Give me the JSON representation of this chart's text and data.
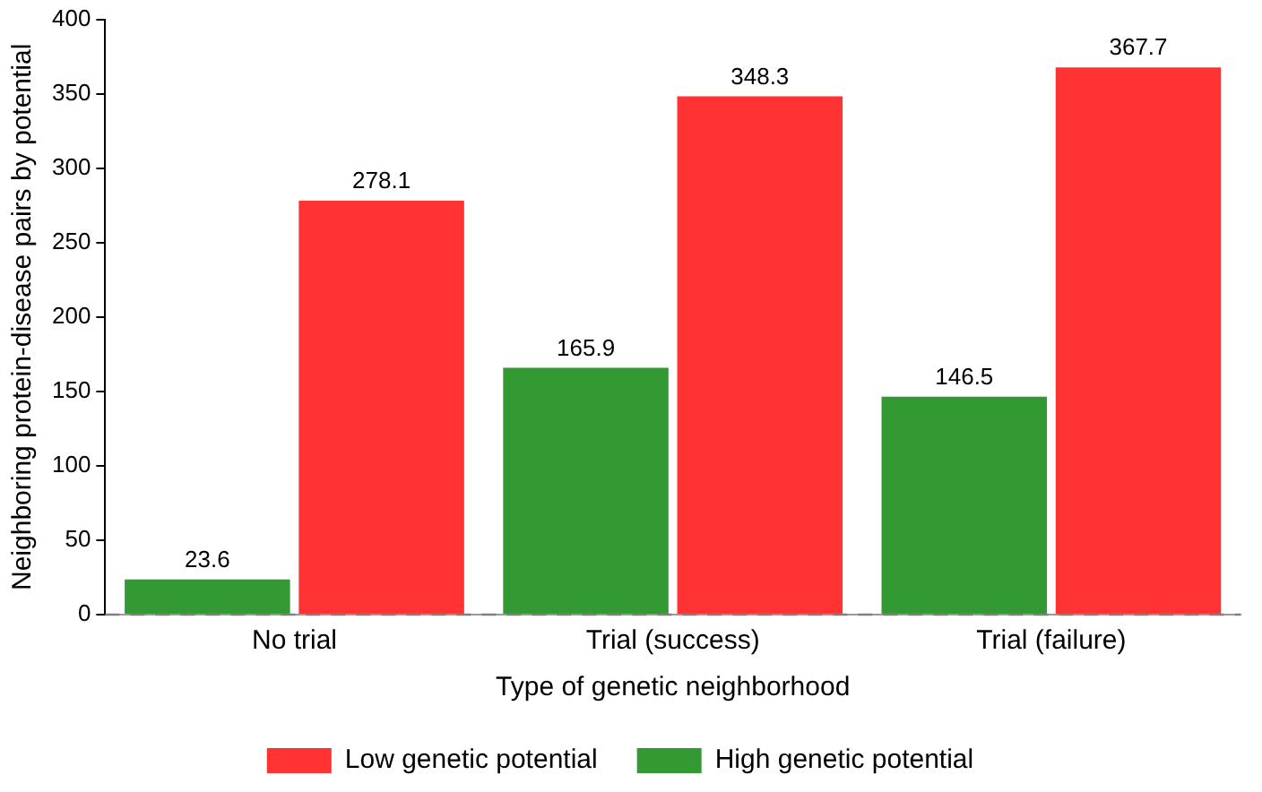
{
  "chart_data": {
    "type": "bar",
    "xlabel": "Type of genetic neighborhood",
    "ylabel": "Neighboring protein-disease pairs by potential",
    "categories": [
      "No trial",
      "Trial (success)",
      "Trial (failure)"
    ],
    "series": [
      {
        "name": "High genetic potential",
        "color": "#339933",
        "values": [
          23.6,
          165.9,
          146.5
        ]
      },
      {
        "name": "Low genetic potential",
        "color": "#ff3333",
        "values": [
          278.1,
          348.3,
          367.7
        ]
      }
    ],
    "ylim": [
      0,
      400
    ],
    "yticks": [
      0,
      50,
      100,
      150,
      200,
      250,
      300,
      350,
      400
    ],
    "grid": false,
    "legend": "bottom",
    "data_labels": true,
    "ref_lines": [
      {
        "axis": "y",
        "value": 0,
        "color": "#808080",
        "line_style": "dashed"
      }
    ]
  }
}
